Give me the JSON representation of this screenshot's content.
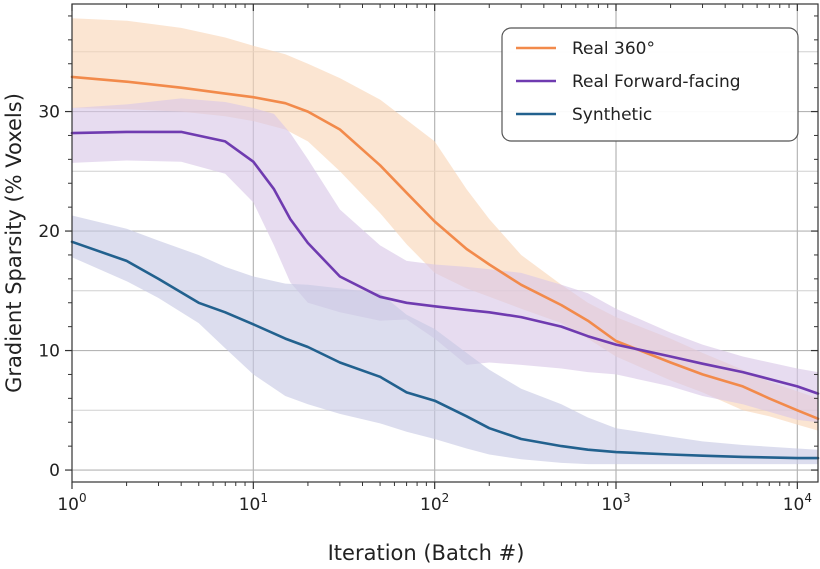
{
  "chart_data": {
    "type": "line",
    "xlabel": "Iteration (Batch #)",
    "ylabel": "Gradient Sparsity (% Voxels)",
    "xscale": "log",
    "xlim": [
      1,
      13000
    ],
    "ylim": [
      -1,
      39
    ],
    "x_ticks": [
      {
        "value": 1,
        "base": "10",
        "exp": "0"
      },
      {
        "value": 10,
        "base": "10",
        "exp": "1"
      },
      {
        "value": 100,
        "base": "10",
        "exp": "2"
      },
      {
        "value": 1000,
        "base": "10",
        "exp": "3"
      },
      {
        "value": 10000,
        "base": "10",
        "exp": "4"
      }
    ],
    "y_ticks": [
      {
        "value": 0,
        "label": "0"
      },
      {
        "value": 10,
        "label": "10"
      },
      {
        "value": 20,
        "label": "20"
      },
      {
        "value": 30,
        "label": "30"
      }
    ],
    "y_minor_gridlines": [
      5,
      15,
      25,
      35
    ],
    "grid": true,
    "legend_position": "top-right",
    "series": [
      {
        "name": "Real 360°",
        "color": "#F28A4B",
        "band_color": "#F9D5B6",
        "x": [
          1,
          2,
          4,
          7,
          10,
          15,
          20,
          30,
          50,
          70,
          100,
          150,
          200,
          300,
          500,
          700,
          1000,
          2000,
          3000,
          5000,
          7000,
          10000,
          13000
        ],
        "y": [
          32.9,
          32.5,
          32.0,
          31.5,
          31.2,
          30.7,
          30.0,
          28.5,
          25.5,
          23.2,
          20.8,
          18.5,
          17.2,
          15.5,
          13.8,
          12.5,
          10.8,
          9.0,
          8.0,
          7.0,
          6.0,
          5.0,
          4.3
        ],
        "lower": [
          30.3,
          30.2,
          30.0,
          29.6,
          29.2,
          28.5,
          27.5,
          25.0,
          21.5,
          18.9,
          16.5,
          15.2,
          14.5,
          13.5,
          12.3,
          11.0,
          9.5,
          7.5,
          6.5,
          5.0,
          4.5,
          3.8,
          3.3
        ],
        "upper": [
          37.8,
          37.6,
          37.0,
          36.2,
          35.5,
          34.8,
          34.0,
          32.8,
          31.0,
          29.3,
          27.5,
          23.5,
          21.0,
          18.0,
          15.5,
          14.0,
          12.8,
          11.0,
          9.8,
          8.4,
          7.4,
          6.6,
          6.0
        ]
      },
      {
        "name": "Real Forward-facing",
        "color": "#6F3BB0",
        "band_color": "#D8C6E6",
        "x": [
          1,
          2,
          4,
          7,
          10,
          13,
          16,
          20,
          30,
          50,
          70,
          100,
          150,
          200,
          300,
          500,
          700,
          1000,
          2000,
          3000,
          5000,
          10000,
          13000
        ],
        "y": [
          28.2,
          28.3,
          28.3,
          27.5,
          25.8,
          23.5,
          21.0,
          19.0,
          16.2,
          14.5,
          14.0,
          13.7,
          13.4,
          13.2,
          12.8,
          12.0,
          11.2,
          10.5,
          9.5,
          8.9,
          8.2,
          7.0,
          6.4
        ],
        "lower": [
          25.7,
          25.9,
          25.8,
          24.8,
          22.4,
          18.8,
          15.7,
          14.0,
          13.2,
          12.5,
          12.6,
          11.0,
          8.8,
          9.0,
          8.8,
          8.5,
          8.2,
          8.0,
          7.0,
          6.2,
          5.5,
          4.2,
          4.0
        ],
        "upper": [
          30.3,
          30.6,
          31.1,
          30.8,
          30.3,
          29.8,
          28.2,
          26.0,
          21.8,
          18.8,
          17.5,
          17.2,
          17.0,
          16.8,
          16.5,
          15.5,
          14.8,
          13.5,
          11.5,
          10.5,
          9.5,
          8.5,
          8.2
        ]
      },
      {
        "name": "Synthetic",
        "color": "#22618E",
        "band_color": "#C6C8E4",
        "x": [
          1,
          2,
          3,
          5,
          7,
          10,
          15,
          20,
          30,
          50,
          70,
          100,
          150,
          200,
          300,
          500,
          700,
          1000,
          2000,
          3000,
          5000,
          10000,
          13000
        ],
        "y": [
          19.1,
          17.5,
          16.0,
          14.0,
          13.2,
          12.2,
          11.0,
          10.3,
          9.0,
          7.8,
          6.5,
          5.8,
          4.5,
          3.5,
          2.6,
          2.0,
          1.7,
          1.5,
          1.3,
          1.2,
          1.1,
          1.0,
          1.0
        ],
        "lower": [
          17.8,
          15.8,
          14.4,
          12.3,
          10.2,
          8.0,
          6.2,
          5.5,
          4.7,
          3.9,
          3.2,
          2.6,
          1.8,
          1.3,
          0.9,
          0.6,
          0.5,
          0.5,
          0.5,
          0.5,
          0.5,
          0.5,
          0.5
        ],
        "upper": [
          21.3,
          20.2,
          19.2,
          18.0,
          17.0,
          16.2,
          15.6,
          15.5,
          15.2,
          14.8,
          13.0,
          11.8,
          9.8,
          8.4,
          6.8,
          5.5,
          4.4,
          3.5,
          2.8,
          2.4,
          2.1,
          1.8,
          1.7
        ]
      }
    ]
  }
}
